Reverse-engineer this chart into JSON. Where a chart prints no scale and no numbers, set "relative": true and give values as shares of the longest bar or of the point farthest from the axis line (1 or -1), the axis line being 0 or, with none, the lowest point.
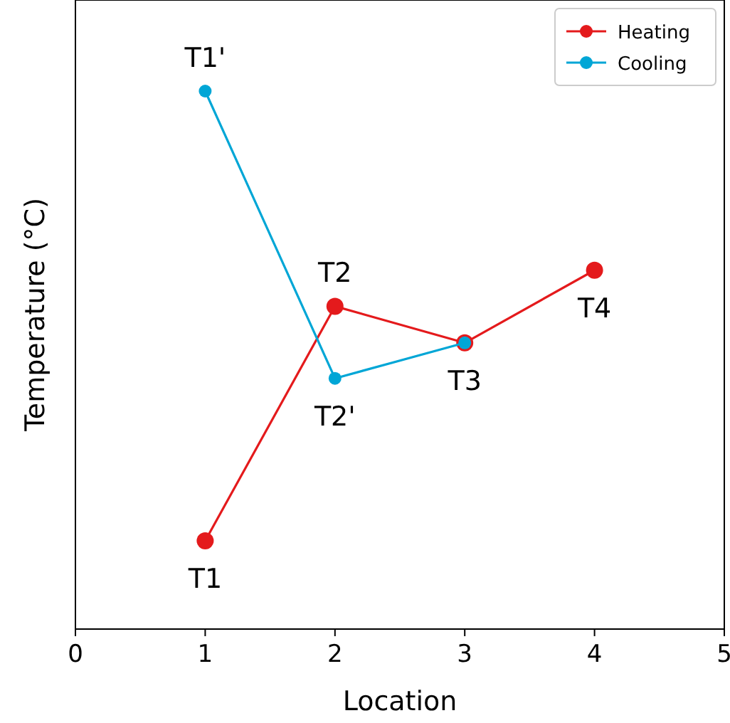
{
  "chart_data": {
    "type": "line",
    "xlabel": "Location",
    "ylabel": "Temperature (°C)",
    "relative": true,
    "xlim": [
      0,
      5
    ],
    "xticks": [
      0,
      1,
      2,
      3,
      4,
      5
    ],
    "legend": "top right",
    "marker": "circle",
    "grid": false,
    "series": [
      {
        "name": "Heating",
        "color": "#e41a1c",
        "x": [
          1,
          2,
          3,
          4
        ],
        "values": [
          0.164,
          0.6,
          0.532,
          0.667
        ]
      },
      {
        "name": "Cooling",
        "color": "#00a6d6",
        "x": [
          1,
          2,
          3
        ],
        "values": [
          1,
          0.466,
          0.532
        ]
      }
    ],
    "annotations": [
      {
        "text": "T1",
        "x": 1,
        "y": 0.164
      },
      {
        "text": "T2",
        "x": 2,
        "y": 0.6
      },
      {
        "text": "T3",
        "x": 3,
        "y": 0.532
      },
      {
        "text": "T4",
        "x": 4,
        "y": 0.667
      },
      {
        "text": "T1'",
        "x": 1,
        "y": 1
      },
      {
        "text": "T2'",
        "x": 2,
        "y": 0.466
      }
    ]
  }
}
